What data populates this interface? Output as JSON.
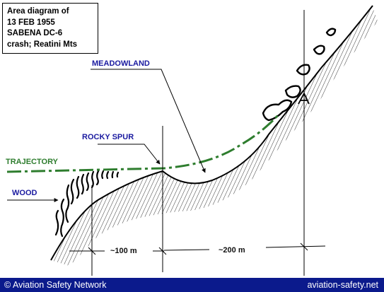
{
  "title_lines": [
    "Area diagram of",
    "13 FEB 1955",
    "SABENA DC-6",
    "crash; Reatini Mts"
  ],
  "labels": {
    "meadowland": "MEADOWLAND",
    "rocky_spur": "ROCKY SPUR",
    "trajectory": "TRAJECTORY",
    "wood": "WOOD",
    "dist_100": "~100 m",
    "dist_200": "~200 m"
  },
  "footer": {
    "left": "© Aviation Safety Network",
    "right": "aviation-safety.net"
  },
  "colors": {
    "label_blue": "#1a1aa0",
    "trajectory_green": "#2e7d2e",
    "footer_bg": "#0b1a8c"
  }
}
